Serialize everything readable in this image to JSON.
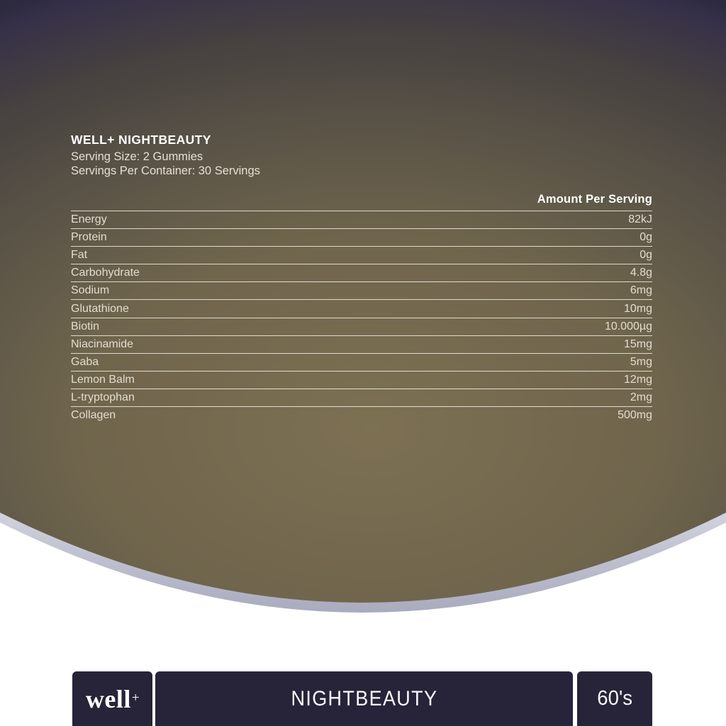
{
  "label": {
    "title": "WELL+ NIGHTBEAUTY",
    "serving_size": "Serving Size: 2 Gummies",
    "servings_per_container": "Servings Per Container: 30 Servings",
    "table": {
      "amount_header": "Amount Per Serving",
      "rows": [
        {
          "name": "Energy",
          "amount": "82kJ"
        },
        {
          "name": "Protein",
          "amount": "0g"
        },
        {
          "name": "Fat",
          "amount": "0g"
        },
        {
          "name": "Carbohydrate",
          "amount": "4.8g"
        },
        {
          "name": "Sodium",
          "amount": "6mg"
        },
        {
          "name": "Glutathione",
          "amount": "10mg"
        },
        {
          "name": "Biotin",
          "amount": "10.000µg"
        },
        {
          "name": "Niacinamide",
          "amount": "15mg"
        },
        {
          "name": "Gaba",
          "amount": "5mg"
        },
        {
          "name": "Lemon Balm",
          "amount": "12mg"
        },
        {
          "name": "L-tryptophan",
          "amount": "2mg"
        },
        {
          "name": "Collagen",
          "amount": "500mg"
        }
      ]
    }
  },
  "footer": {
    "brand": "well",
    "brand_plus": "+",
    "product_name": "NIGHTBEAUTY",
    "count": "60's"
  },
  "colors": {
    "label_center_olive": "#7d7053",
    "label_corner_navy": "#2d2a40",
    "curve_edge_silver": "#a4a6ba",
    "footer_bar_navy": "#272338",
    "text_warm_white": "#e2ddd0",
    "text_white": "#ffffff",
    "page_background": "#ffffff"
  }
}
